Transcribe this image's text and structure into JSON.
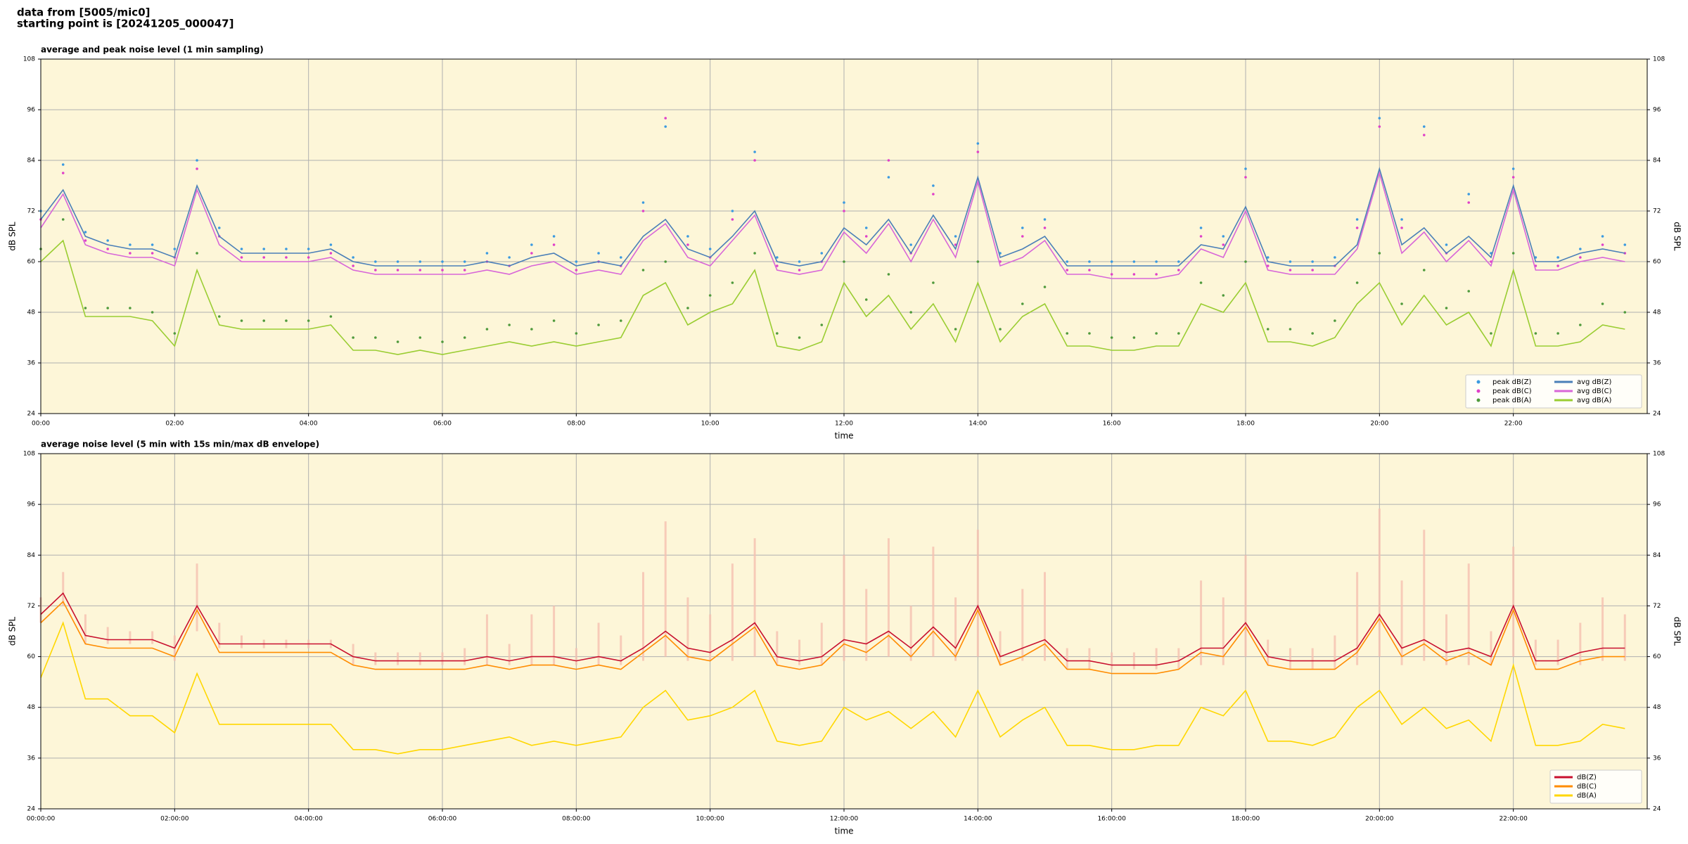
{
  "header": [
    "data from [5005/mic0]",
    "starting point is [20241205_000047]"
  ],
  "chart_data": [
    {
      "type": "line",
      "title": "average and peak noise level (1 min sampling)",
      "xlabel": "time",
      "ylabel": "dB SPL",
      "background": "#fdf6d8",
      "grid": true,
      "legend": "lower right",
      "legend_columns": 2,
      "xlim": [
        0,
        1440
      ],
      "ylim": [
        24,
        108
      ],
      "yticks": [
        24,
        36,
        48,
        60,
        72,
        84,
        96,
        108
      ],
      "xticks": [
        {
          "value": 0,
          "label": "00:00"
        },
        {
          "value": 120,
          "label": "02:00"
        },
        {
          "value": 240,
          "label": "04:00"
        },
        {
          "value": 360,
          "label": "06:00"
        },
        {
          "value": 480,
          "label": "08:00"
        },
        {
          "value": 600,
          "label": "10:00"
        },
        {
          "value": 720,
          "label": "12:00"
        },
        {
          "value": 840,
          "label": "14:00"
        },
        {
          "value": 960,
          "label": "16:00"
        },
        {
          "value": 1080,
          "label": "18:00"
        },
        {
          "value": 1200,
          "label": "20:00"
        },
        {
          "value": 1320,
          "label": "22:00"
        }
      ],
      "x": [
        0,
        20,
        40,
        60,
        80,
        100,
        120,
        140,
        160,
        180,
        200,
        220,
        240,
        260,
        280,
        300,
        320,
        340,
        360,
        380,
        400,
        420,
        440,
        460,
        480,
        500,
        520,
        540,
        560,
        580,
        600,
        620,
        640,
        660,
        680,
        700,
        720,
        740,
        760,
        780,
        800,
        820,
        840,
        860,
        880,
        900,
        920,
        940,
        960,
        980,
        1000,
        1020,
        1040,
        1060,
        1080,
        1100,
        1120,
        1140,
        1160,
        1180,
        1200,
        1220,
        1240,
        1260,
        1280,
        1300,
        1320,
        1340,
        1360,
        1380,
        1400,
        1420
      ],
      "series": [
        {
          "name": "peak dB(Z)",
          "style": "dots",
          "color": "#3b9ae0",
          "values": [
            72,
            83,
            67,
            65,
            64,
            64,
            63,
            84,
            68,
            63,
            63,
            63,
            63,
            64,
            61,
            60,
            60,
            60,
            60,
            60,
            62,
            61,
            64,
            66,
            60,
            62,
            61,
            74,
            92,
            66,
            63,
            72,
            86,
            61,
            60,
            62,
            74,
            68,
            80,
            64,
            78,
            66,
            88,
            62,
            68,
            70,
            60,
            60,
            60,
            60,
            60,
            60,
            68,
            66,
            82,
            61,
            60,
            60,
            61,
            70,
            94,
            70,
            92,
            64,
            76,
            62,
            82,
            61,
            61,
            63,
            66,
            64
          ]
        },
        {
          "name": "peak dB(C)",
          "style": "dots",
          "color": "#e040c8",
          "values": [
            70,
            81,
            65,
            63,
            62,
            62,
            61,
            82,
            66,
            61,
            61,
            61,
            61,
            62,
            59,
            58,
            58,
            58,
            58,
            58,
            60,
            59,
            62,
            64,
            58,
            60,
            59,
            72,
            94,
            64,
            61,
            70,
            84,
            59,
            58,
            60,
            72,
            66,
            84,
            62,
            76,
            64,
            86,
            60,
            66,
            68,
            58,
            58,
            57,
            57,
            57,
            58,
            66,
            64,
            80,
            59,
            58,
            58,
            59,
            68,
            92,
            68,
            90,
            62,
            74,
            60,
            80,
            59,
            59,
            61,
            64,
            62
          ]
        },
        {
          "name": "peak dB(A)",
          "style": "dots",
          "color": "#4f9a3c",
          "values": [
            63,
            70,
            49,
            49,
            49,
            48,
            43,
            62,
            47,
            46,
            46,
            46,
            46,
            47,
            42,
            42,
            41,
            42,
            41,
            42,
            44,
            45,
            44,
            46,
            43,
            45,
            46,
            58,
            60,
            49,
            52,
            55,
            62,
            43,
            42,
            45,
            60,
            51,
            57,
            48,
            55,
            44,
            60,
            44,
            50,
            54,
            43,
            43,
            42,
            42,
            43,
            43,
            55,
            52,
            60,
            44,
            44,
            43,
            46,
            55,
            62,
            50,
            58,
            49,
            53,
            43,
            62,
            43,
            43,
            45,
            50,
            48
          ]
        },
        {
          "name": "avg dB(Z)",
          "style": "line",
          "color": "#4a7fb8",
          "values": [
            70,
            77,
            66,
            64,
            63,
            63,
            61,
            78,
            66,
            62,
            62,
            62,
            62,
            63,
            60,
            59,
            59,
            59,
            59,
            59,
            60,
            59,
            61,
            62,
            59,
            60,
            59,
            66,
            70,
            63,
            61,
            66,
            72,
            60,
            59,
            60,
            68,
            64,
            70,
            62,
            71,
            63,
            80,
            61,
            63,
            66,
            59,
            59,
            59,
            59,
            59,
            59,
            64,
            63,
            73,
            60,
            59,
            59,
            59,
            64,
            82,
            64,
            68,
            62,
            66,
            61,
            78,
            60,
            60,
            62,
            63,
            62
          ]
        },
        {
          "name": "avg dB(C)",
          "style": "line",
          "color": "#d866d8",
          "values": [
            68,
            76,
            64,
            62,
            61,
            61,
            59,
            77,
            64,
            60,
            60,
            60,
            60,
            61,
            58,
            57,
            57,
            57,
            57,
            57,
            58,
            57,
            59,
            60,
            57,
            58,
            57,
            65,
            69,
            61,
            59,
            65,
            71,
            58,
            57,
            58,
            67,
            62,
            69,
            60,
            70,
            61,
            79,
            59,
            61,
            65,
            57,
            57,
            56,
            56,
            56,
            57,
            63,
            61,
            72,
            58,
            57,
            57,
            57,
            63,
            81,
            62,
            67,
            60,
            65,
            59,
            77,
            58,
            58,
            60,
            61,
            60
          ]
        },
        {
          "name": "avg dB(A)",
          "style": "line",
          "color": "#9acd32",
          "values": [
            60,
            65,
            47,
            47,
            47,
            46,
            40,
            58,
            45,
            44,
            44,
            44,
            44,
            45,
            39,
            39,
            38,
            39,
            38,
            39,
            40,
            41,
            40,
            41,
            40,
            41,
            42,
            52,
            55,
            45,
            48,
            50,
            58,
            40,
            39,
            41,
            55,
            47,
            52,
            44,
            50,
            41,
            55,
            41,
            47,
            50,
            40,
            40,
            39,
            39,
            40,
            40,
            50,
            48,
            55,
            41,
            41,
            40,
            42,
            50,
            55,
            45,
            52,
            45,
            48,
            40,
            58,
            40,
            40,
            41,
            45,
            44
          ]
        }
      ]
    },
    {
      "type": "line",
      "title": "average noise level (5 min with 15s min/max dB envelope)",
      "xlabel": "time",
      "ylabel": "dB SPL",
      "background": "#fdf6d8",
      "grid": true,
      "legend": "lower right",
      "legend_columns": 1,
      "xlim": [
        0,
        1440
      ],
      "ylim": [
        24,
        108
      ],
      "yticks": [
        24,
        36,
        48,
        60,
        72,
        84,
        96,
        108
      ],
      "xticks": [
        {
          "value": 0,
          "label": "00:00:00"
        },
        {
          "value": 120,
          "label": "02:00:00"
        },
        {
          "value": 240,
          "label": "04:00:00"
        },
        {
          "value": 360,
          "label": "06:00:00"
        },
        {
          "value": 480,
          "label": "08:00:00"
        },
        {
          "value": 600,
          "label": "10:00:00"
        },
        {
          "value": 720,
          "label": "12:00:00"
        },
        {
          "value": 840,
          "label": "14:00:00"
        },
        {
          "value": 960,
          "label": "16:00:00"
        },
        {
          "value": 1080,
          "label": "18:00:00"
        },
        {
          "value": 1200,
          "label": "20:00:00"
        },
        {
          "value": 1320,
          "label": "22:00:00"
        }
      ],
      "x": [
        0,
        20,
        40,
        60,
        80,
        100,
        120,
        140,
        160,
        180,
        200,
        220,
        240,
        260,
        280,
        300,
        320,
        340,
        360,
        380,
        400,
        420,
        440,
        460,
        480,
        500,
        520,
        540,
        560,
        580,
        600,
        620,
        640,
        660,
        680,
        700,
        720,
        740,
        760,
        780,
        800,
        820,
        840,
        860,
        880,
        900,
        920,
        940,
        960,
        980,
        1000,
        1020,
        1040,
        1060,
        1080,
        1100,
        1120,
        1140,
        1160,
        1180,
        1200,
        1220,
        1240,
        1260,
        1280,
        1300,
        1320,
        1340,
        1360,
        1380,
        1400,
        1420
      ],
      "envelope": {
        "color": "#f5c0b0",
        "high": [
          74,
          80,
          70,
          67,
          66,
          66,
          65,
          82,
          68,
          65,
          64,
          64,
          64,
          64,
          63,
          61,
          61,
          61,
          61,
          62,
          70,
          63,
          70,
          72,
          62,
          68,
          65,
          80,
          92,
          74,
          70,
          82,
          88,
          66,
          64,
          68,
          84,
          76,
          88,
          72,
          86,
          74,
          90,
          66,
          76,
          80,
          62,
          62,
          61,
          61,
          62,
          62,
          78,
          74,
          84,
          64,
          62,
          62,
          65,
          80,
          95,
          78,
          90,
          70,
          82,
          66,
          86,
          64,
          64,
          68,
          74,
          70
        ],
        "low": [
          68,
          72,
          63,
          63,
          63,
          63,
          59,
          66,
          62,
          62,
          62,
          62,
          62,
          62,
          58,
          58,
          58,
          58,
          58,
          58,
          58,
          58,
          58,
          58,
          58,
          58,
          58,
          59,
          60,
          59,
          59,
          59,
          60,
          58,
          58,
          58,
          59,
          59,
          60,
          59,
          60,
          59,
          60,
          58,
          59,
          59,
          57,
          57,
          57,
          57,
          57,
          57,
          58,
          58,
          60,
          58,
          57,
          57,
          57,
          58,
          60,
          58,
          59,
          58,
          58,
          58,
          60,
          58,
          58,
          58,
          59,
          59
        ]
      },
      "series": [
        {
          "name": "dB(Z)",
          "style": "line",
          "color": "#c8102e",
          "values": [
            70,
            75,
            65,
            64,
            64,
            64,
            62,
            72,
            63,
            63,
            63,
            63,
            63,
            63,
            60,
            59,
            59,
            59,
            59,
            59,
            60,
            59,
            60,
            60,
            59,
            60,
            59,
            62,
            66,
            62,
            61,
            64,
            68,
            60,
            59,
            60,
            64,
            63,
            66,
            62,
            67,
            62,
            72,
            60,
            62,
            64,
            59,
            59,
            58,
            58,
            58,
            59,
            62,
            62,
            68,
            60,
            59,
            59,
            59,
            62,
            70,
            62,
            64,
            61,
            62,
            60,
            72,
            59,
            59,
            61,
            62,
            62
          ]
        },
        {
          "name": "dB(C)",
          "style": "line",
          "color": "#ff8c00",
          "values": [
            68,
            73,
            63,
            62,
            62,
            62,
            60,
            71,
            61,
            61,
            61,
            61,
            61,
            61,
            58,
            57,
            57,
            57,
            57,
            57,
            58,
            57,
            58,
            58,
            57,
            58,
            57,
            61,
            65,
            60,
            59,
            63,
            67,
            58,
            57,
            58,
            63,
            61,
            65,
            60,
            66,
            60,
            71,
            58,
            60,
            63,
            57,
            57,
            56,
            56,
            56,
            57,
            61,
            60,
            67,
            58,
            57,
            57,
            57,
            61,
            69,
            60,
            63,
            59,
            61,
            58,
            71,
            57,
            57,
            59,
            60,
            60
          ]
        },
        {
          "name": "dB(A)",
          "style": "line",
          "color": "#ffd700",
          "values": [
            55,
            68,
            50,
            50,
            46,
            46,
            42,
            56,
            44,
            44,
            44,
            44,
            44,
            44,
            38,
            38,
            37,
            38,
            38,
            39,
            40,
            41,
            39,
            40,
            39,
            40,
            41,
            48,
            52,
            45,
            46,
            48,
            52,
            40,
            39,
            40,
            48,
            45,
            47,
            43,
            47,
            41,
            52,
            41,
            45,
            48,
            39,
            39,
            38,
            38,
            39,
            39,
            48,
            46,
            52,
            40,
            40,
            39,
            41,
            48,
            52,
            44,
            48,
            43,
            45,
            40,
            58,
            39,
            39,
            40,
            44,
            43
          ]
        }
      ]
    }
  ]
}
